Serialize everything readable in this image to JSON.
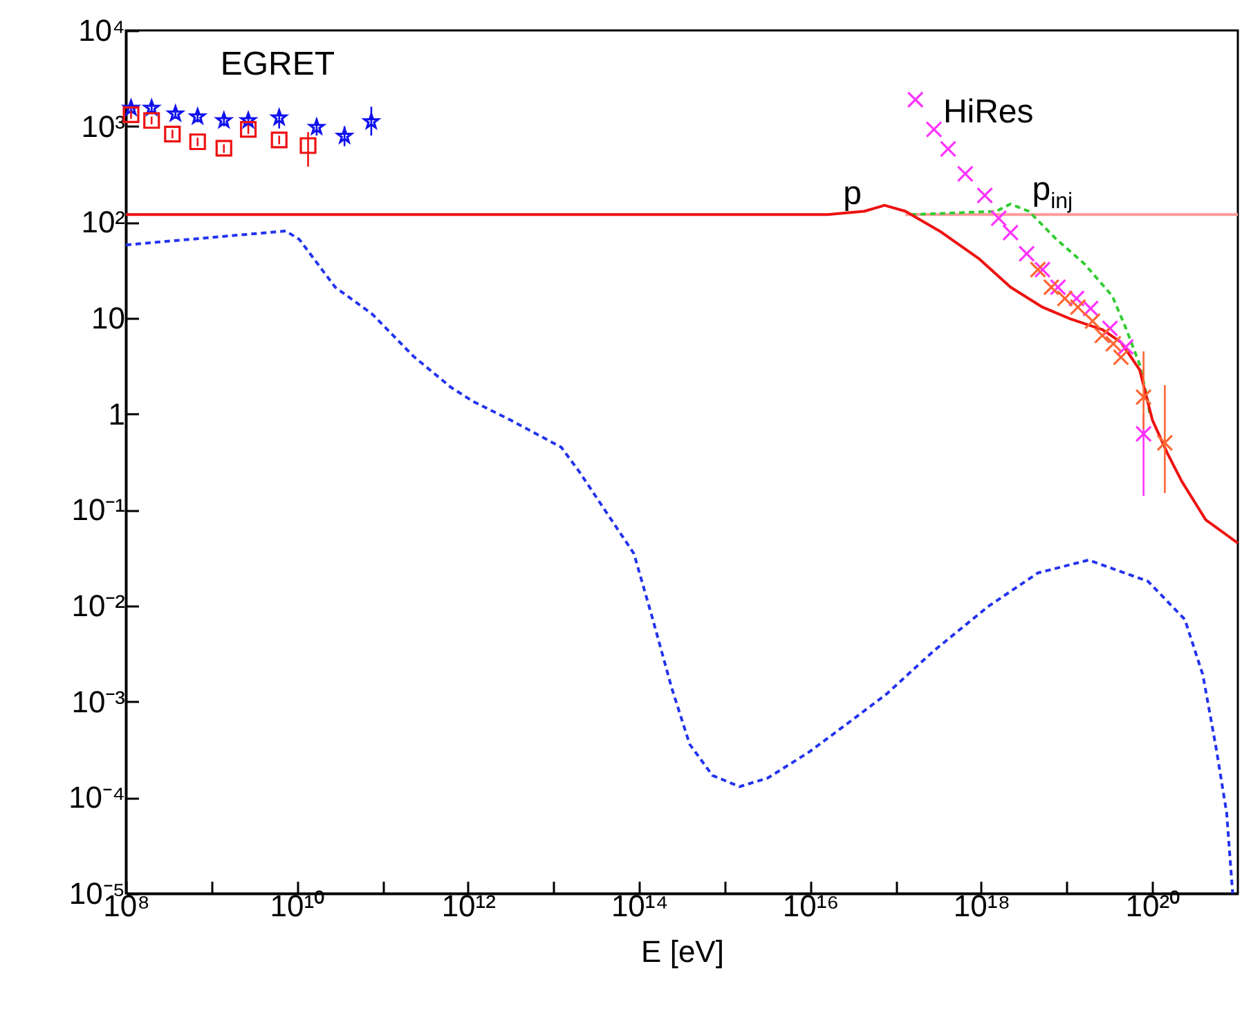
{
  "chart_data": {
    "type": "line",
    "xlabel": "E [eV]",
    "log": "xy",
    "xlim": [
      100000000.0,
      1e+21
    ],
    "ylim": [
      1e-05,
      10000.0
    ],
    "xticks": [
      {
        "value": 100000000.0,
        "label": "10⁸"
      },
      {
        "value": 1000000000.0,
        "label": null
      },
      {
        "value": 10000000000.0,
        "label": "10¹⁰"
      },
      {
        "value": 100000000000.0,
        "label": null
      },
      {
        "value": 1000000000000.0,
        "label": "10¹²"
      },
      {
        "value": 10000000000000.0,
        "label": null
      },
      {
        "value": 100000000000000.0,
        "label": "10¹⁴"
      },
      {
        "value": 1000000000000000.0,
        "label": null
      },
      {
        "value": 1e+16,
        "label": "10¹⁶"
      },
      {
        "value": 1e+17,
        "label": null
      },
      {
        "value": 1e+18,
        "label": "10¹⁸"
      },
      {
        "value": 1e+19,
        "label": null
      },
      {
        "value": 1e+20,
        "label": "10²⁰"
      }
    ],
    "yticks": [
      {
        "value": 10000.0,
        "label": "10⁴"
      },
      {
        "value": 1000.0,
        "label": "10³"
      },
      {
        "value": 100,
        "label": "10²"
      },
      10,
      1,
      {
        "value": 0.1,
        "label": "10⁻¹"
      },
      {
        "value": 0.01,
        "label": "10⁻²"
      },
      {
        "value": 0.001,
        "label": "10⁻³"
      },
      {
        "value": 0.0001,
        "label": "10⁻⁴"
      },
      {
        "value": 1e-05,
        "label": "10⁻⁵"
      }
    ],
    "series": [
      {
        "name": "p$_{inj}$",
        "color": "#ff9999",
        "line_style": "solid",
        "x": [
          1.3e+17,
          1e+21
        ],
        "values": [
          120,
          120
        ]
      },
      {
        "color": "#2233ee",
        "line_style": "dashed",
        "x": [
          100000000.0,
          7400000000.0,
          10700000000.0,
          28000000000.0,
          76000000000.0,
          230000000000.0,
          630000000000.0,
          1150000000000.0,
          3100000000000.0,
          12300000000000.0,
          20000000000000.0,
          87000000000000.0,
          140000000000000.0,
          240000000000000.0,
          390000000000000.0,
          720000000000000.0,
          1500000000000000.0,
          3200000000000000.0,
          9800000000000000.0,
          3e+16,
          7.8e+16,
          2.8e+17,
          1.2e+18,
          4.6e+18,
          1.8e+19,
          8.9e+19,
          2.4e+20,
          3.9e+20,
          5.6e+20,
          7.4e+20,
          8.7e+20
        ],
        "values": [
          58,
          81,
          66,
          21,
          11,
          4.0,
          1.9,
          1.35,
          0.87,
          0.45,
          0.25,
          0.035,
          0.008,
          0.0014,
          0.00036,
          0.00017,
          0.00013,
          0.00016,
          0.0003,
          0.00063,
          0.0012,
          0.0034,
          0.0098,
          0.022,
          0.03,
          0.018,
          0.0072,
          0.0019,
          0.00032,
          6.9e-05,
          1e-05
        ]
      },
      {
        "color": "#33cc33",
        "line_style": "dashed",
        "x": [
          1.5e+17,
          1.5e+18,
          2.2e+18,
          3.6e+18,
          7.6e+18,
          1.6e+19,
          3.4e+19,
          4.9e+19,
          7.1e+19,
          8.9e+19,
          9.3e+19
        ],
        "values": [
          120,
          130,
          155,
          130,
          66,
          37,
          17,
          7.9,
          3.3,
          1.35,
          1.0
        ]
      },
      {
        "name": "p",
        "color": "#ee1111",
        "line_style": "solid",
        "x": [
          100000000.0,
          1.6e+16,
          4.3e+16,
          7.4e+16,
          1.3e+17,
          3.4e+17,
          9.3e+17,
          2.2e+18,
          5.2e+18,
          1.1e+19,
          2.6e+19,
          4.3e+19,
          7.1e+19,
          1e+20,
          1.5e+20,
          2.2e+20,
          4.2e+20,
          1e+21
        ],
        "values": [
          120,
          120,
          130,
          150,
          130,
          79,
          42,
          21,
          13,
          9.8,
          7.6,
          5.6,
          2.9,
          0.87,
          0.39,
          0.2,
          0.079,
          0.045
        ]
      },
      {
        "name": "HiRes",
        "type": "scatter",
        "color": "#ff33ff",
        "marker": "cross",
        "x": [
          1.7e+17,
          2.8e+17,
          4.1e+17,
          6.5e+17,
          1.1e+18,
          1.6e+18,
          2.2e+18,
          3.4e+18,
          5.2e+18,
          7.9e+18,
          1.3e+19,
          1.9e+19,
          3.2e+19,
          4.9e+19,
          7.9e+19
        ],
        "values": [
          1900,
          930,
          580,
          320,
          190,
          110,
          78,
          47,
          32,
          21,
          16,
          12.6,
          7.8,
          5.0,
          0.62
        ],
        "errors": [
          null,
          null,
          null,
          null,
          null,
          null,
          null,
          null,
          null,
          null,
          null,
          null,
          null,
          null,
          [
            0.14,
            1.0
          ]
        ]
      },
      {
        "type": "scatter",
        "color": "#ff6633",
        "marker": "cross",
        "x": [
          4.6e+18,
          6.6e+18,
          9.5e+18,
          1.35e+19,
          2e+19,
          2.6e+19,
          3.5e+19,
          4.3e+19,
          7.9e+19,
          1.4e+20
        ],
        "values": [
          32,
          21,
          16,
          13,
          9.3,
          6.6,
          5.4,
          3.9,
          1.5,
          0.5
        ],
        "errors": [
          null,
          null,
          null,
          null,
          null,
          null,
          null,
          null,
          [
            0.7,
            4.5
          ],
          [
            0.15,
            2.0
          ]
        ]
      },
      {
        "name": "EGRET",
        "type": "scatter",
        "color": "#1111ee",
        "marker": "star",
        "x": [
          115000000.0,
          200000000.0,
          380000000.0,
          690000000.0,
          1400000000.0,
          2700000000.0,
          6200000000.0,
          17000000000.0,
          36000000000.0,
          74000000000.0
        ],
        "values": [
          1550,
          1550,
          1350,
          1260,
          1150,
          1150,
          1230,
          980,
          790,
          1120
        ],
        "errors": [
          [
            1350,
            1750
          ],
          [
            1350,
            1750
          ],
          [
            1200,
            1500
          ],
          [
            1100,
            1400
          ],
          [
            1000,
            1300
          ],
          [
            1000,
            1300
          ],
          [
            950,
            1500
          ],
          [
            800,
            1200
          ],
          [
            620,
            1000
          ],
          [
            800,
            1600
          ]
        ]
      },
      {
        "type": "scatter",
        "color": "#ee1111",
        "marker": "square",
        "x": [
          115000000.0,
          200000000.0,
          350000000.0,
          690000000.0,
          1400000000.0,
          2700000000.0,
          6200000000.0,
          13500000000.0
        ],
        "values": [
          1320,
          1150,
          830,
          690,
          590,
          930,
          720,
          630
        ],
        "errors": [
          [
            1200,
            1450
          ],
          [
            1050,
            1260
          ],
          [
            750,
            920
          ],
          [
            620,
            760
          ],
          [
            530,
            650
          ],
          [
            830,
            1040
          ],
          [
            650,
            800
          ],
          [
            380,
            870
          ]
        ]
      }
    ]
  }
}
